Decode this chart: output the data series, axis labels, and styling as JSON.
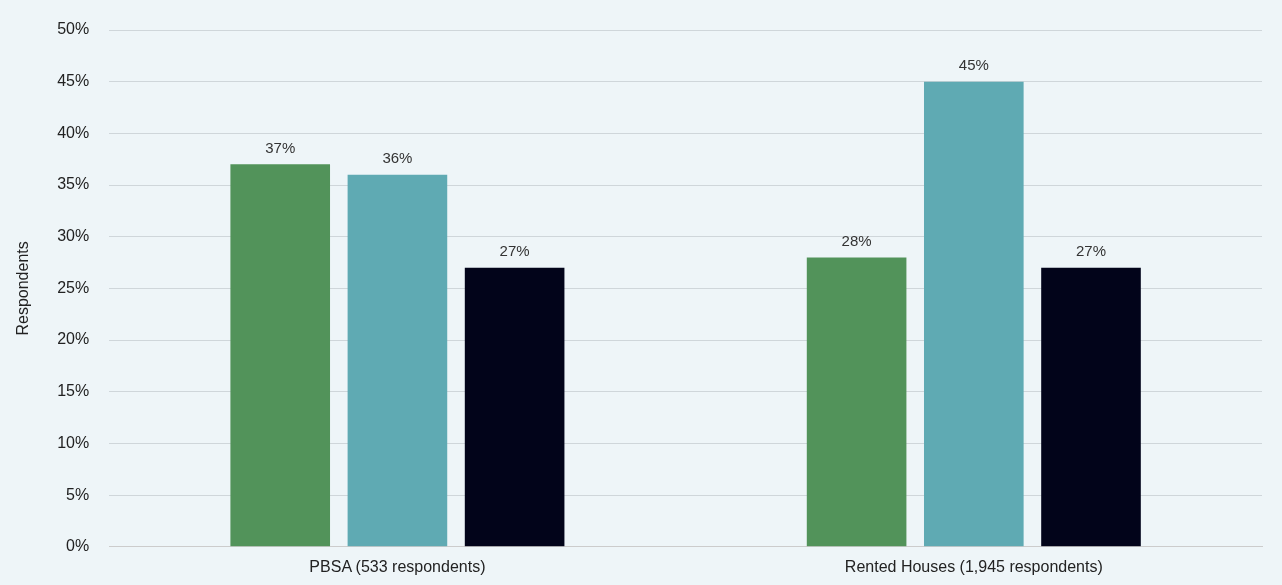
{
  "chart_data": {
    "type": "bar",
    "ylabel": "Respondents",
    "categories": [
      "PBSA (533 respondents)",
      "Rented Houses (1,945 respondents)"
    ],
    "series": [
      {
        "color": "#52935a",
        "values": [
          37,
          28
        ],
        "value_labels": [
          "37%",
          "28%"
        ]
      },
      {
        "color": "#5faab3",
        "values": [
          36,
          45
        ],
        "value_labels": [
          "36%",
          "45%"
        ]
      },
      {
        "color": "#02041a",
        "values": [
          27,
          27
        ],
        "value_labels": [
          "27%",
          "27%"
        ]
      }
    ],
    "ylim": [
      0,
      50
    ],
    "yticks": [
      {
        "value": 0,
        "label": "0%"
      },
      {
        "value": 5,
        "label": "5%"
      },
      {
        "value": 10,
        "label": "10%"
      },
      {
        "value": 15,
        "label": "15%"
      },
      {
        "value": 20,
        "label": "20%"
      },
      {
        "value": 25,
        "label": "25%"
      },
      {
        "value": 30,
        "label": "30%"
      },
      {
        "value": 35,
        "label": "35%"
      },
      {
        "value": 40,
        "label": "40%"
      },
      {
        "value": 45,
        "label": "45%"
      },
      {
        "value": 50,
        "label": "50%"
      }
    ],
    "grid": "y",
    "legend": false
  }
}
